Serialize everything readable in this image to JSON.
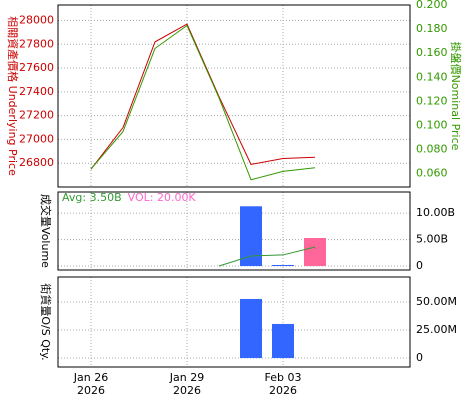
{
  "chart_data": [
    {
      "type": "line",
      "ylabel": "相關資產價格 Underlying Price",
      "y2label": "掛盤價Nominal Price",
      "ylim": [
        26600,
        28130
      ],
      "yticks": [
        26800,
        27000,
        27200,
        27400,
        27600,
        27800,
        28000
      ],
      "y2lim": [
        0.049,
        0.2
      ],
      "y2ticks": [
        {
          "value": 0.06,
          "label": "0.060"
        },
        {
          "value": 0.08,
          "label": "0.080"
        },
        {
          "value": 0.1,
          "label": "0.100"
        },
        {
          "value": 0.12,
          "label": "0.120"
        },
        {
          "value": 0.14,
          "label": "0.140"
        },
        {
          "value": 0.16,
          "label": "0.160"
        },
        {
          "value": 0.18,
          "label": "0.180"
        },
        {
          "value": 0.2,
          "label": "0.200"
        }
      ],
      "series": [
        {
          "color": "#cc0000",
          "values": [
            26750,
            27100,
            27820,
            27970,
            27360,
            26790,
            26840,
            26850
          ]
        },
        {
          "color": "#339900",
          "axis": "y2",
          "values": [
            0.064,
            0.095,
            0.164,
            0.183,
            0.123,
            0.055,
            0.062,
            0.065
          ]
        }
      ],
      "grid": true
    },
    {
      "type": "bar",
      "ylabel": "成交量Volume",
      "ylim": [
        -0.75,
        14
      ],
      "yticks": [
        0,
        {
          "value": 5,
          "label": "5.00B"
        },
        {
          "value": 10,
          "label": "10.00B"
        }
      ],
      "values": [
        null,
        null,
        null,
        null,
        null,
        11.3,
        0.2,
        5.3
      ],
      "colors": [
        null,
        null,
        null,
        null,
        null,
        "#3366ff",
        "#3366ff",
        "#ff6699"
      ],
      "avg_line": {
        "color": "#339933",
        "values": [
          null,
          null,
          null,
          null,
          0,
          1.9,
          2.1,
          3.6
        ]
      },
      "annotations": [
        {
          "text": "Avg: 3.50B",
          "color": "#339933"
        },
        {
          "text": "VOL: 20.00K",
          "color": "#ff66cc"
        }
      ],
      "grid": true
    },
    {
      "type": "bar",
      "ylabel": "街貨量O/S Qty.",
      "ylim": [
        -8,
        72.3
      ],
      "yticks": [
        0,
        {
          "value": 25,
          "label": "25.00M"
        },
        {
          "value": 50,
          "label": "50.00M"
        }
      ],
      "values": [
        null,
        null,
        null,
        null,
        null,
        52.7,
        30.4,
        null
      ],
      "color": "#3366ff",
      "categories": [
        "Jan 26 2026",
        null,
        null,
        "Jan 29 2026",
        null,
        null,
        "Feb 03 2026",
        null
      ],
      "grid": true
    }
  ]
}
